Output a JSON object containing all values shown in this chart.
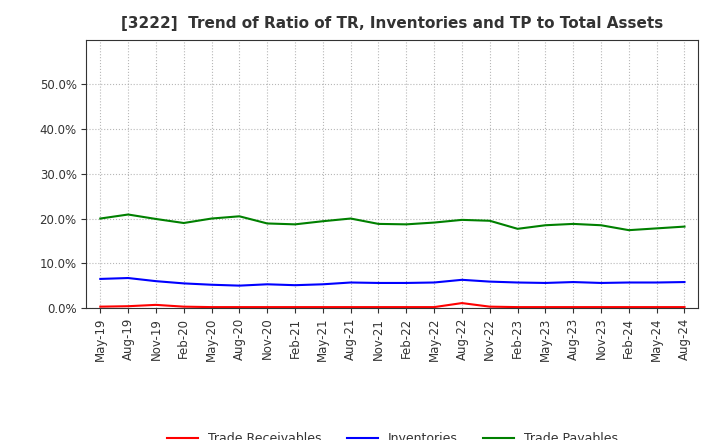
{
  "title": "[3222]  Trend of Ratio of TR, Inventories and TP to Total Assets",
  "x_labels": [
    "May-19",
    "Aug-19",
    "Nov-19",
    "Feb-20",
    "May-20",
    "Aug-20",
    "Nov-20",
    "Feb-21",
    "May-21",
    "Aug-21",
    "Nov-21",
    "Feb-22",
    "May-22",
    "Aug-22",
    "Nov-22",
    "Feb-23",
    "May-23",
    "Aug-23",
    "Nov-23",
    "Feb-24",
    "May-24",
    "Aug-24"
  ],
  "trade_receivables": [
    0.003,
    0.004,
    0.007,
    0.003,
    0.002,
    0.002,
    0.002,
    0.002,
    0.002,
    0.002,
    0.002,
    0.002,
    0.002,
    0.011,
    0.003,
    0.002,
    0.002,
    0.002,
    0.002,
    0.002,
    0.002,
    0.002
  ],
  "inventories": [
    0.065,
    0.067,
    0.06,
    0.055,
    0.052,
    0.05,
    0.053,
    0.051,
    0.053,
    0.057,
    0.056,
    0.056,
    0.057,
    0.063,
    0.059,
    0.057,
    0.056,
    0.058,
    0.056,
    0.057,
    0.057,
    0.058
  ],
  "trade_payables": [
    0.2,
    0.209,
    0.199,
    0.19,
    0.2,
    0.205,
    0.189,
    0.187,
    0.194,
    0.2,
    0.188,
    0.187,
    0.191,
    0.197,
    0.195,
    0.177,
    0.185,
    0.188,
    0.185,
    0.174,
    0.178,
    0.182
  ],
  "color_tr": "#ff0000",
  "color_inv": "#0000ff",
  "color_tp": "#008000",
  "ylim": [
    0.0,
    0.6
  ],
  "yticks": [
    0.0,
    0.1,
    0.2,
    0.3,
    0.4,
    0.5
  ],
  "background_color": "#ffffff",
  "grid_color": "#999999",
  "title_fontsize": 11,
  "tick_fontsize": 8.5,
  "legend_fontsize": 9
}
